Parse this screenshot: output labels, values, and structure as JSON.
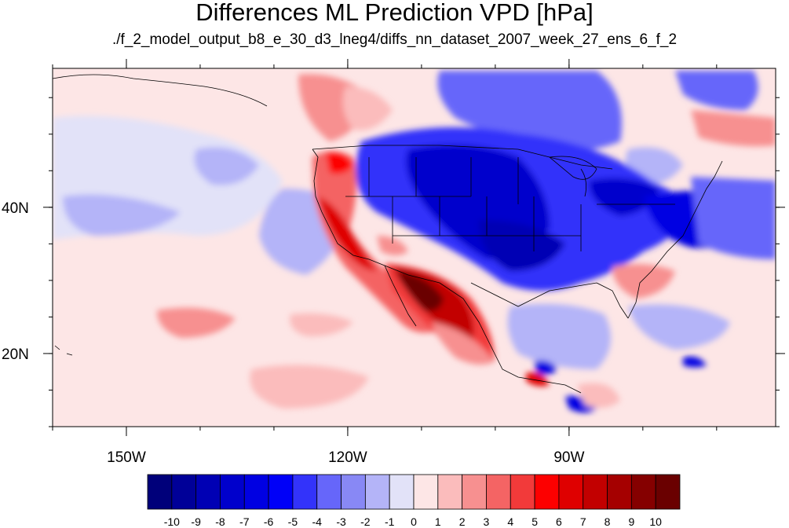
{
  "title": "Differences ML Prediction VPD [hPa]",
  "subtitle": "./f_2_model_output_b8_e_30_d3_lneg4/diffs_nn_dataset_2007_week_27_ens_6_f_2",
  "map": {
    "lon_range": [
      -160,
      -62
    ],
    "lat_range": [
      10,
      59
    ],
    "x_ticks": [
      {
        "value": -150,
        "label": "150W"
      },
      {
        "value": -120,
        "label": "120W"
      },
      {
        "value": -90,
        "label": "90W"
      }
    ],
    "y_ticks": [
      {
        "value": 20,
        "label": "20N"
      },
      {
        "value": 40,
        "label": "40N"
      }
    ]
  },
  "colorbar": {
    "labels": [
      "-10",
      "-9",
      "-8",
      "-7",
      "-6",
      "-5",
      "-4",
      "-3",
      "-2",
      "-1",
      "0",
      "1",
      "2",
      "3",
      "4",
      "5",
      "6",
      "7",
      "8",
      "9",
      "10"
    ],
    "colors": [
      "#00007a",
      "#000098",
      "#0000b4",
      "#0000cc",
      "#0000e2",
      "#0000f8",
      "#3333fa",
      "#6666fa",
      "#8888f5",
      "#b4b4f8",
      "#e2e2f8",
      "#fde6e6",
      "#fbbcbc",
      "#f79090",
      "#f46464",
      "#f23a3a",
      "#fd0000",
      "#df0000",
      "#c20000",
      "#a50000",
      "#850000",
      "#6a0000"
    ]
  }
}
